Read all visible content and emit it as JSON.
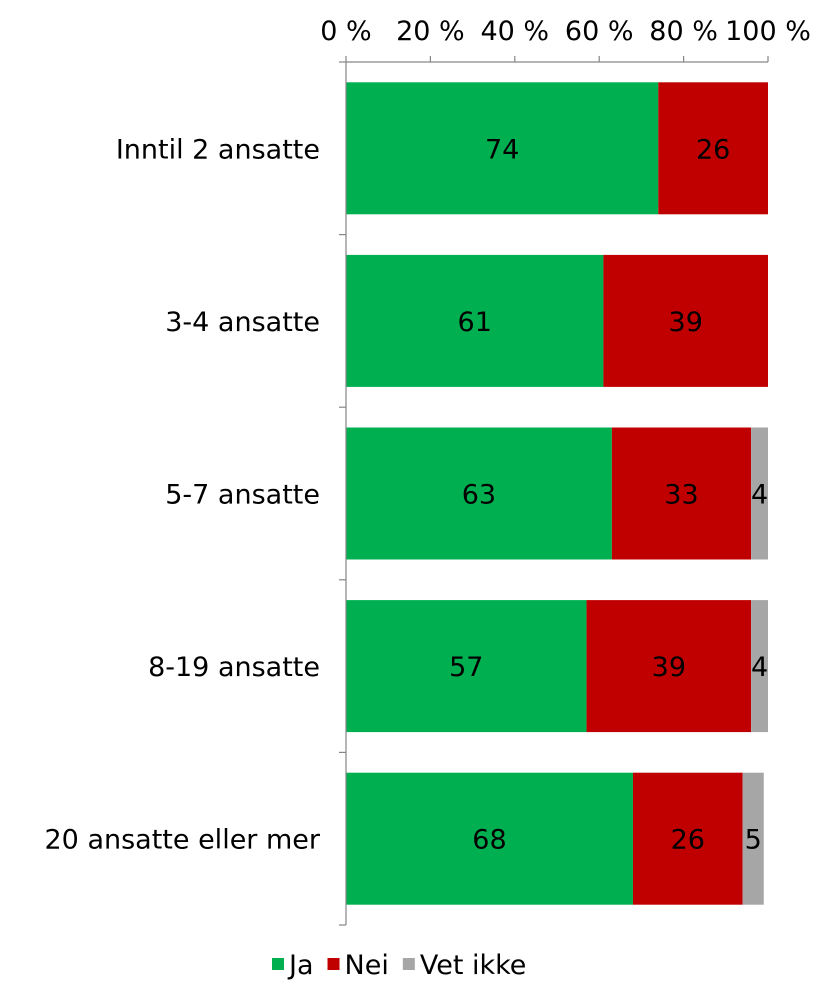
{
  "chart_data": {
    "type": "bar",
    "orientation": "horizontal",
    "stacked": "percent",
    "categories": [
      "Inntil 2 ansatte",
      "3-4 ansatte",
      "5-7 ansatte",
      "8-19 ansatte",
      "20 ansatte eller mer"
    ],
    "series": [
      {
        "name": "Ja",
        "values": [
          74,
          61,
          63,
          57,
          68
        ],
        "color": "#00b050"
      },
      {
        "name": "Nei",
        "values": [
          26,
          39,
          33,
          39,
          26
        ],
        "color": "#c00000"
      },
      {
        "name": "Vet ikke",
        "values": [
          0,
          0,
          4,
          4,
          5
        ],
        "color": "#a6a6a6"
      }
    ],
    "x_ticks": [
      "0 %",
      "20 %",
      "40 %",
      "60 %",
      "80 %",
      "100 %"
    ],
    "xlim": [
      0,
      100
    ],
    "axis_position": "top",
    "grid": false,
    "legend": "bottom",
    "data_labels": true
  }
}
